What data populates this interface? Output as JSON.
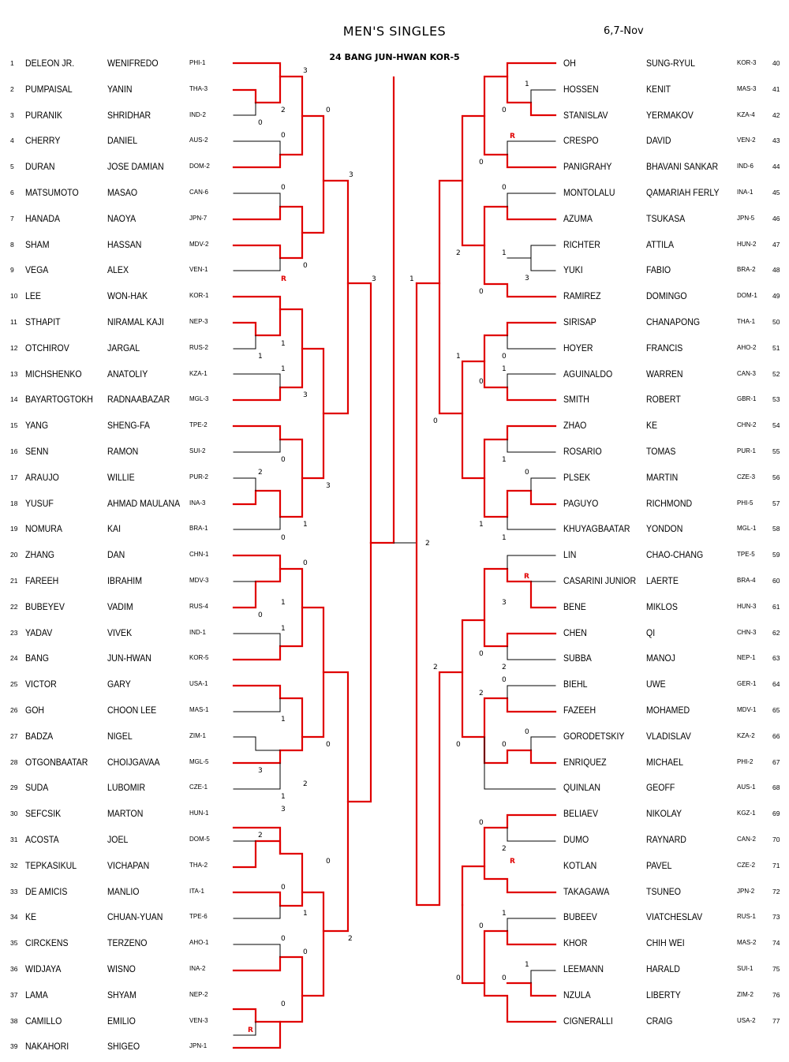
{
  "header": {
    "title": "MEN'S  SINGLES",
    "date": "6,7-Nov",
    "champion": "24  BANG  JUN-HWAN  KOR-5"
  },
  "colors": {
    "winner_line": "#e00000",
    "loser_line": "#000000"
  },
  "left_players": [
    {
      "no": "1",
      "surname": "DELEON  JR.",
      "given": "WENIFREDO",
      "cc": "PHI-1"
    },
    {
      "no": "2",
      "surname": "PUMPAISAL",
      "given": "YANIN",
      "cc": "THA-3"
    },
    {
      "no": "3",
      "surname": "PURANIK",
      "given": "SHRIDHAR",
      "cc": "IND-2"
    },
    {
      "no": "4",
      "surname": "CHERRY",
      "given": "DANIEL",
      "cc": "AUS-2"
    },
    {
      "no": "5",
      "surname": "DURAN",
      "given": "JOSE DAMIAN",
      "cc": "DOM-2"
    },
    {
      "no": "6",
      "surname": "MATSUMOTO",
      "given": "MASAO",
      "cc": "CAN-6"
    },
    {
      "no": "7",
      "surname": "HANADA",
      "given": "NAOYA",
      "cc": "JPN-7"
    },
    {
      "no": "8",
      "surname": "SHAM",
      "given": "HASSAN",
      "cc": "MDV-2"
    },
    {
      "no": "9",
      "surname": "VEGA",
      "given": "ALEX",
      "cc": "VEN-1"
    },
    {
      "no": "10",
      "surname": "LEE",
      "given": "WON-HAK",
      "cc": "KOR-1"
    },
    {
      "no": "11",
      "surname": "STHAPIT",
      "given": "NIRAMAL  KAJI",
      "cc": "NEP-3"
    },
    {
      "no": "12",
      "surname": "OTCHIROV",
      "given": "JARGAL",
      "cc": "RUS-2"
    },
    {
      "no": "13",
      "surname": "MICHSHENKO",
      "given": "ANATOLIY",
      "cc": "KZA-1"
    },
    {
      "no": "14",
      "surname": "BAYARTOGTOKH",
      "given": "RADNAABAZAR",
      "cc": "MGL-3"
    },
    {
      "no": "15",
      "surname": "YANG",
      "given": "SHENG-FA",
      "cc": "TPE-2"
    },
    {
      "no": "16",
      "surname": "SENN",
      "given": "RAMON",
      "cc": "SUI-2"
    },
    {
      "no": "17",
      "surname": "ARAUJO",
      "given": "WILLIE",
      "cc": "PUR-2"
    },
    {
      "no": "18",
      "surname": "YUSUF",
      "given": "AHMAD  MAULANA",
      "cc": "INA-3"
    },
    {
      "no": "19",
      "surname": "NOMURA",
      "given": "KAI",
      "cc": "BRA-1"
    },
    {
      "no": "20",
      "surname": "ZHANG",
      "given": "DAN",
      "cc": "CHN-1"
    },
    {
      "no": "21",
      "surname": "FAREEH",
      "given": "IBRAHIM",
      "cc": "MDV-3"
    },
    {
      "no": "22",
      "surname": "BUBEYEV",
      "given": "VADIM",
      "cc": "RUS-4"
    },
    {
      "no": "23",
      "surname": "YADAV",
      "given": "VIVEK",
      "cc": "IND-1"
    },
    {
      "no": "24",
      "surname": "BANG",
      "given": "JUN-HWAN",
      "cc": "KOR-5"
    },
    {
      "no": "25",
      "surname": "VICTOR",
      "given": "GARY",
      "cc": "USA-1"
    },
    {
      "no": "26",
      "surname": "GOH",
      "given": "CHOON   LEE",
      "cc": "MAS-1"
    },
    {
      "no": "27",
      "surname": "BADZA",
      "given": "NIGEL",
      "cc": "ZIM-1"
    },
    {
      "no": "28",
      "surname": "OTGONBAATAR",
      "given": "CHOIJGAVAA",
      "cc": "MGL-5"
    },
    {
      "no": "29",
      "surname": "SUDA",
      "given": "LUBOMIR",
      "cc": "CZE-1"
    },
    {
      "no": "30",
      "surname": "SEFCSIK",
      "given": "MARTON",
      "cc": "HUN-1"
    },
    {
      "no": "31",
      "surname": "ACOSTA",
      "given": "JOEL",
      "cc": "DOM-5"
    },
    {
      "no": "32",
      "surname": "TEPKASIKUL",
      "given": "VICHAPAN",
      "cc": "THA-2"
    },
    {
      "no": "33",
      "surname": "DE   AMICIS",
      "given": "MANLIO",
      "cc": "ITA-1"
    },
    {
      "no": "34",
      "surname": "KE",
      "given": "CHUAN-YUAN",
      "cc": "TPE-6"
    },
    {
      "no": "35",
      "surname": "CIRCKENS",
      "given": "TERZENO",
      "cc": "AHO-1"
    },
    {
      "no": "36",
      "surname": "WIDJAYA",
      "given": "WISNO",
      "cc": "INA-2"
    },
    {
      "no": "37",
      "surname": "LAMA",
      "given": "SHYAM",
      "cc": "NEP-2"
    },
    {
      "no": "38",
      "surname": "CAMILLO",
      "given": "EMILIO",
      "cc": "VEN-3"
    },
    {
      "no": "39",
      "surname": "NAKAHORI",
      "given": "SHIGEO",
      "cc": "JPN-1"
    }
  ],
  "right_players": [
    {
      "no": "40",
      "surname": "OH",
      "given": "SUNG-RYUL",
      "cc": "KOR-3"
    },
    {
      "no": "41",
      "surname": "HOSSEN",
      "given": "KENIT",
      "cc": "MAS-3"
    },
    {
      "no": "42",
      "surname": "STANISLAV",
      "given": "YERMAKOV",
      "cc": "KZA-4"
    },
    {
      "no": "43",
      "surname": "CRESPO",
      "given": "DAVID",
      "cc": "VEN-2"
    },
    {
      "no": "44",
      "surname": "PANIGRAHY",
      "given": "BHAVANI SANKAR",
      "cc": "IND-6"
    },
    {
      "no": "45",
      "surname": "MONTOLALU",
      "given": "QAMARIAH  FERLY",
      "cc": "INA-1"
    },
    {
      "no": "46",
      "surname": "AZUMA",
      "given": "TSUKASA",
      "cc": "JPN-5"
    },
    {
      "no": "47",
      "surname": "RICHTER",
      "given": "ATTILA",
      "cc": "HUN-2"
    },
    {
      "no": "48",
      "surname": "YUKI",
      "given": "FABIO",
      "cc": "BRA-2"
    },
    {
      "no": "49",
      "surname": "RAMIREZ",
      "given": "DOMINGO",
      "cc": "DOM-1"
    },
    {
      "no": "50",
      "surname": "SIRISAP",
      "given": "CHANAPONG",
      "cc": "THA-1"
    },
    {
      "no": "51",
      "surname": "HOYER",
      "given": "FRANCIS",
      "cc": "AHO-2"
    },
    {
      "no": "52",
      "surname": "AGUINALDO",
      "given": "WARREN",
      "cc": "CAN-3"
    },
    {
      "no": "53",
      "surname": "SMITH",
      "given": "ROBERT",
      "cc": "GBR-1"
    },
    {
      "no": "54",
      "surname": "ZHAO",
      "given": "KE",
      "cc": "CHN-2"
    },
    {
      "no": "55",
      "surname": "ROSARIO",
      "given": "TOMAS",
      "cc": "PUR-1"
    },
    {
      "no": "56",
      "surname": "PLSEK",
      "given": "MARTIN",
      "cc": "CZE-3"
    },
    {
      "no": "57",
      "surname": "PAGUYO",
      "given": "RICHMOND",
      "cc": "PHI-5"
    },
    {
      "no": "58",
      "surname": "KHUYAGBAATAR",
      "given": "YONDON",
      "cc": "MGL-1"
    },
    {
      "no": "59",
      "surname": "LIN",
      "given": "CHAO-CHANG",
      "cc": "TPE-5"
    },
    {
      "no": "60",
      "surname": "CASARINI JUNIOR",
      "given": "LAERTE",
      "cc": "BRA-4"
    },
    {
      "no": "61",
      "surname": "BENE",
      "given": "MIKLOS",
      "cc": "HUN-3"
    },
    {
      "no": "62",
      "surname": "CHEN",
      "given": "QI",
      "cc": "CHN-3"
    },
    {
      "no": "63",
      "surname": "SUBBA",
      "given": "MANOJ",
      "cc": "NEP-1"
    },
    {
      "no": "64",
      "surname": "BIEHL",
      "given": "UWE",
      "cc": "GER-1"
    },
    {
      "no": "65",
      "surname": "FAZEEH",
      "given": "MOHAMED",
      "cc": "MDV-1"
    },
    {
      "no": "66",
      "surname": "GORODETSKIY",
      "given": "VLADISLAV",
      "cc": "KZA-2"
    },
    {
      "no": "67",
      "surname": "ENRIQUEZ",
      "given": "MICHAEL",
      "cc": "PHI-2"
    },
    {
      "no": "68",
      "surname": "QUINLAN",
      "given": "GEOFF",
      "cc": "AUS-1"
    },
    {
      "no": "69",
      "surname": "BELIAEV",
      "given": "NIKOLAY",
      "cc": "KGZ-1"
    },
    {
      "no": "70",
      "surname": "DUMO",
      "given": "RAYNARD",
      "cc": "CAN-2"
    },
    {
      "no": "71",
      "surname": "KOTLAN",
      "given": "PAVEL",
      "cc": "CZE-2"
    },
    {
      "no": "72",
      "surname": "TAKAGAWA",
      "given": "TSUNEO",
      "cc": "JPN-2"
    },
    {
      "no": "73",
      "surname": "BUBEEV",
      "given": "VIATCHESLAV",
      "cc": "RUS-1"
    },
    {
      "no": "74",
      "surname": "KHOR",
      "given": "CHIH   WEI",
      "cc": "MAS-2"
    },
    {
      "no": "75",
      "surname": "LEEMANN",
      "given": "HARALD",
      "cc": "SUI-1"
    },
    {
      "no": "76",
      "surname": "NZULA",
      "given": "LIBERTY",
      "cc": "ZIM-2"
    },
    {
      "no": "77",
      "surname": "CIGNERALLI",
      "given": "CRAIG",
      "cc": "USA-2"
    }
  ]
}
